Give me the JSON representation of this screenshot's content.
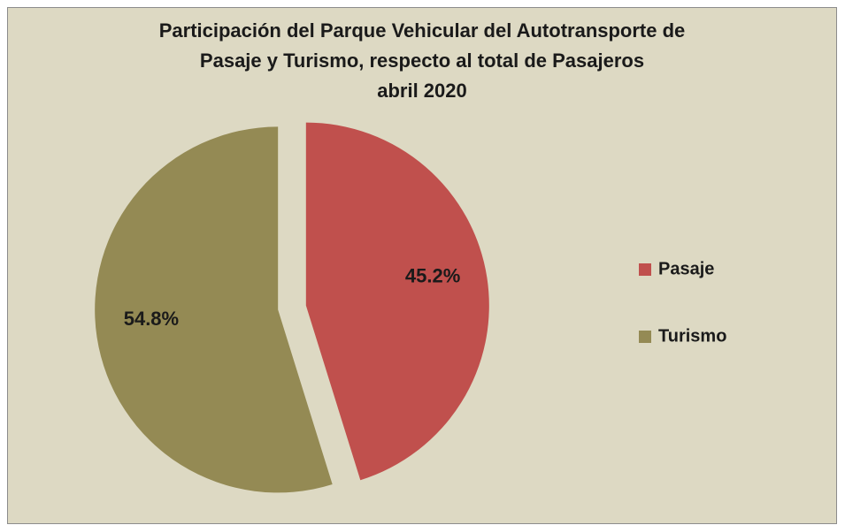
{
  "chart_data": {
    "type": "pie",
    "title": "Participación del Parque Vehicular del Autotransporte de Pasaje y Turismo, respecto al total de Pasajeros abril 2020",
    "title_lines": [
      "Participación del Parque Vehicular del Autotransporte de",
      "Pasaje y Turismo, respecto al total de Pasajeros",
      "abril 2020"
    ],
    "categories": [
      "Pasaje",
      "Turismo"
    ],
    "values": [
      45.2,
      54.8
    ],
    "value_labels": [
      "45.2%",
      "54.8%"
    ],
    "colors": [
      "#c0504d",
      "#948a54"
    ],
    "exploded": true,
    "legend": "right"
  }
}
